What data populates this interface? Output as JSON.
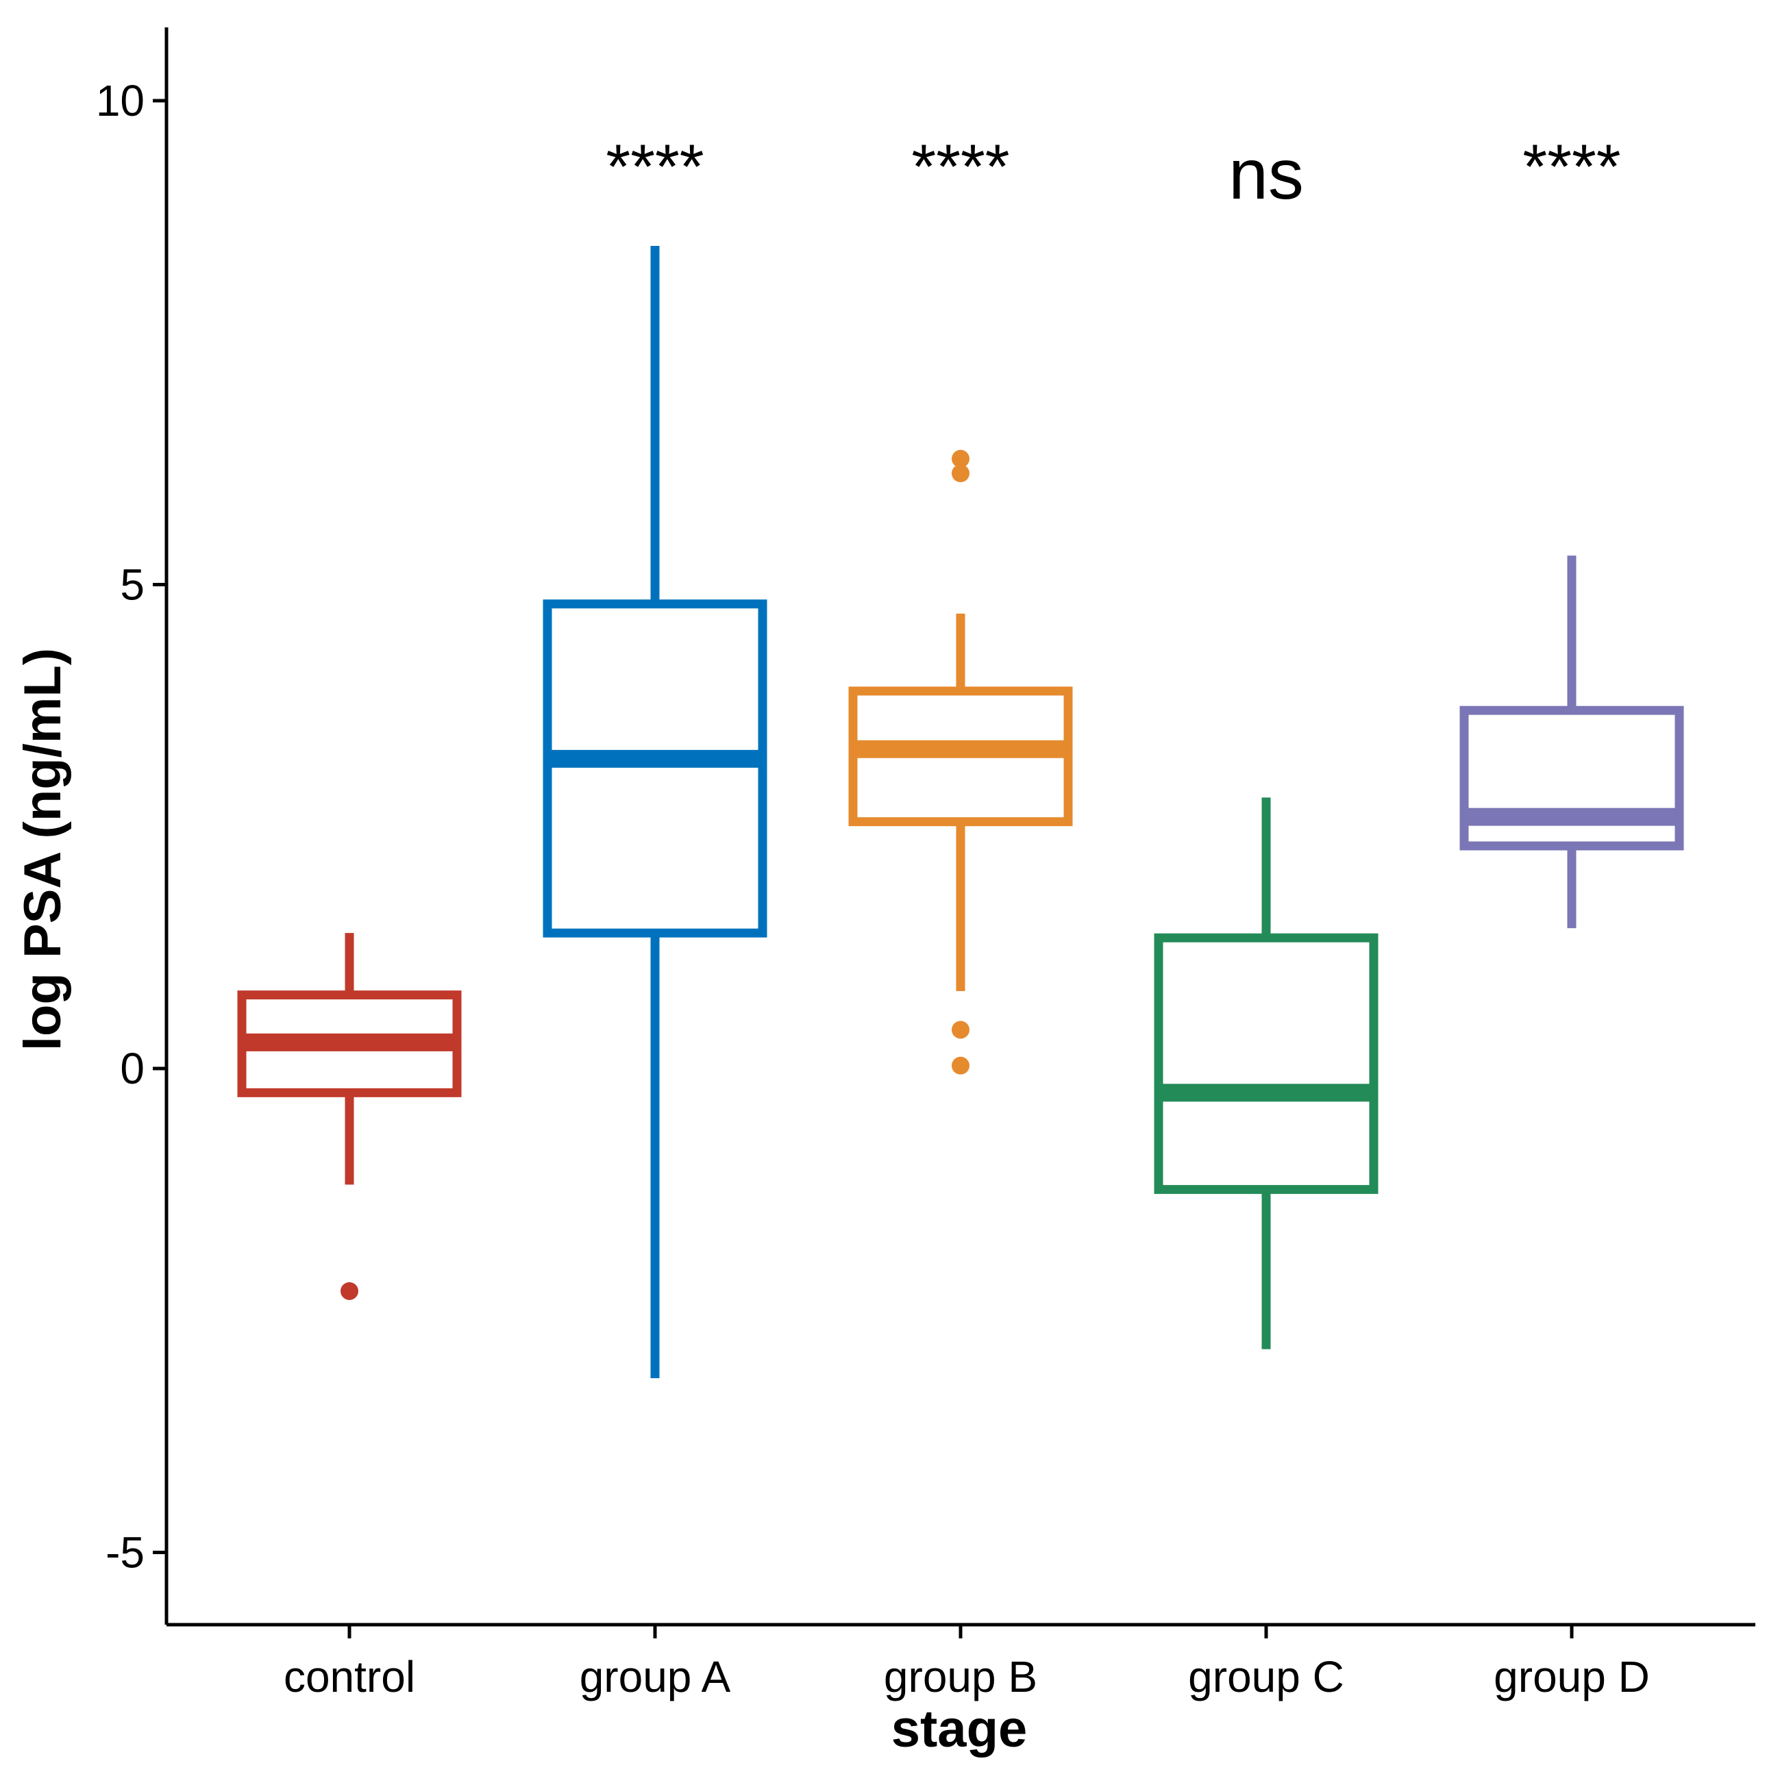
{
  "chart_data": {
    "type": "box",
    "title": "",
    "xlabel": "stage",
    "ylabel": "log PSA (ng/mL)",
    "ylim": [
      -5.75,
      10.75
    ],
    "yticks": [
      {
        "value": 10,
        "label": "10"
      },
      {
        "value": 5,
        "label": "5"
      },
      {
        "value": 0,
        "label": "0"
      },
      {
        "value": -5,
        "label": "-5"
      }
    ],
    "grid": false,
    "legend": "none",
    "categories": [
      "control",
      "group A",
      "group B",
      "group C",
      "group D"
    ],
    "boxes": [
      {
        "name": "control",
        "color": "#C0392B",
        "whisker_low": -1.2,
        "q1": -0.25,
        "median": 0.27,
        "q3": 0.76,
        "whisker_high": 1.4,
        "outliers": [
          -2.3
        ],
        "significance": ""
      },
      {
        "name": "group A",
        "color": "#0072BD",
        "whisker_low": -3.2,
        "q1": 1.4,
        "median": 3.2,
        "q3": 4.8,
        "whisker_high": 8.5,
        "outliers": [],
        "significance": "****"
      },
      {
        "name": "group B",
        "color": "#E68A2E",
        "whisker_low": 0.8,
        "q1": 2.55,
        "median": 3.3,
        "q3": 3.9,
        "whisker_high": 4.7,
        "outliers": [
          6.3,
          6.15,
          0.4,
          0.03
        ],
        "significance": "****"
      },
      {
        "name": "group C",
        "color": "#238B57",
        "whisker_low": -2.9,
        "q1": -1.25,
        "median": -0.25,
        "q3": 1.35,
        "whisker_high": 2.8,
        "outliers": [],
        "significance": "ns"
      },
      {
        "name": "group D",
        "color": "#7B76B5",
        "whisker_low": 1.45,
        "q1": 2.3,
        "median": 2.6,
        "q3": 3.7,
        "whisker_high": 5.3,
        "outliers": [],
        "significance": "****"
      }
    ]
  }
}
